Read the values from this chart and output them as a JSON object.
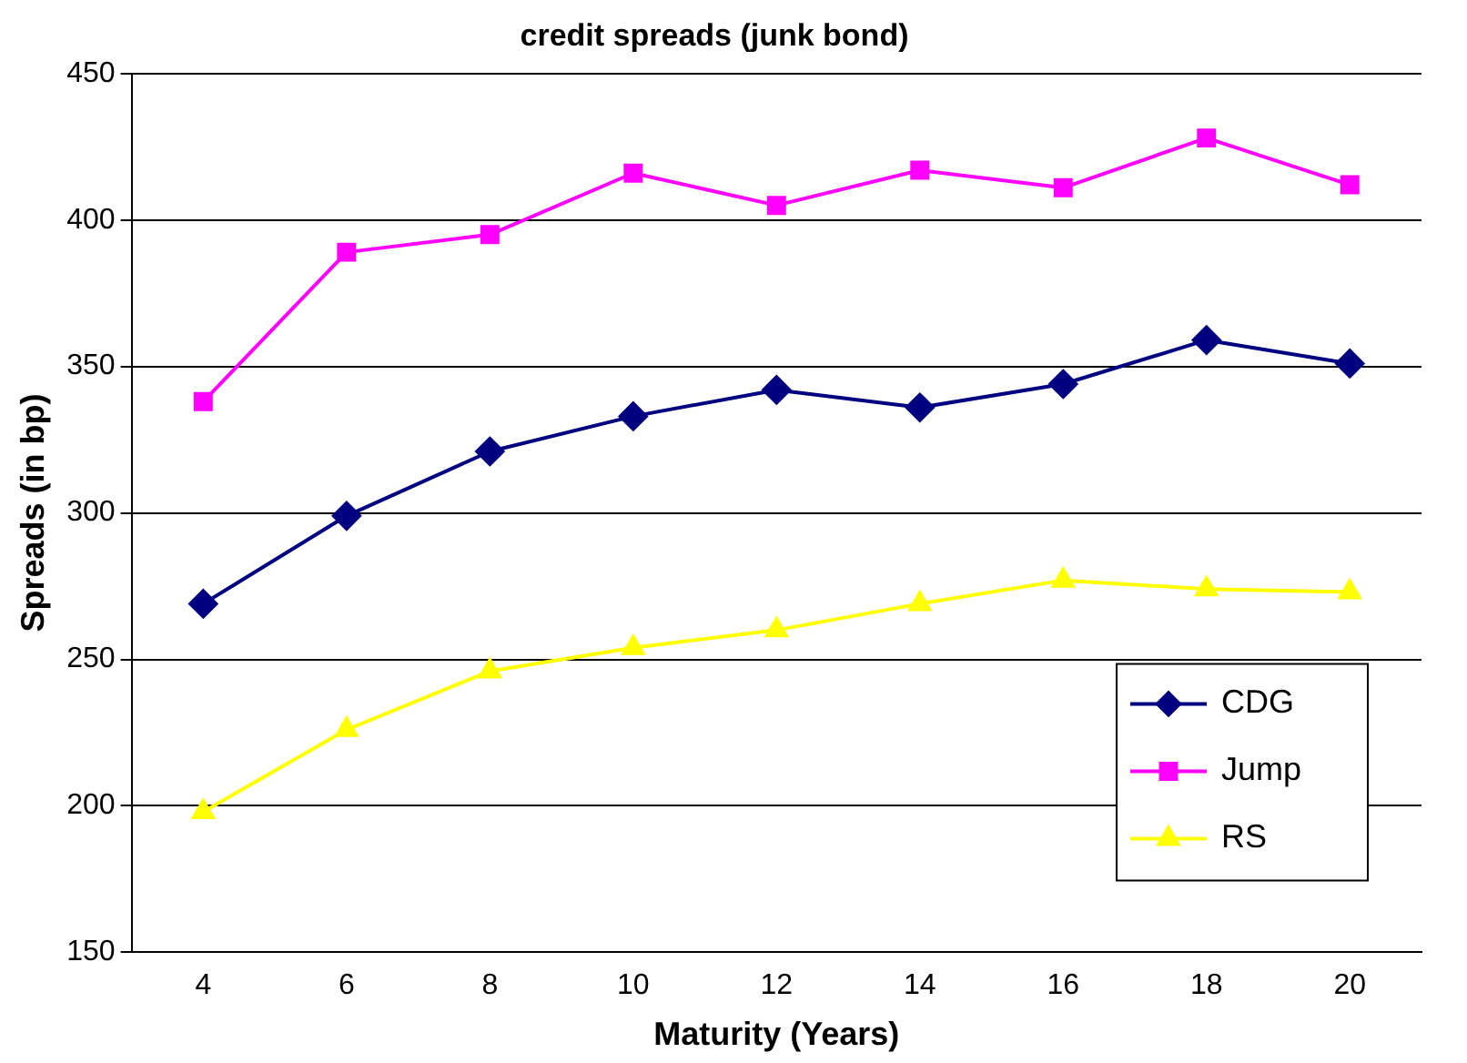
{
  "chart_data": {
    "type": "line",
    "title": "credit spreads (junk bond)",
    "xlabel": "Maturity (Years)",
    "ylabel": "Spreads (in bp)",
    "categories": [
      "4",
      "6",
      "8",
      "10",
      "12",
      "14",
      "16",
      "18",
      "20"
    ],
    "series": [
      {
        "name": "CDG",
        "color": "#000080",
        "marker": "diamond",
        "values": [
          269,
          299,
          321,
          333,
          342,
          336,
          344,
          359,
          351
        ]
      },
      {
        "name": "Jump",
        "color": "#ff00ff",
        "marker": "square",
        "values": [
          338,
          389,
          395,
          416,
          405,
          417,
          411,
          428,
          412
        ]
      },
      {
        "name": "RS",
        "color": "#ffff00",
        "marker": "triangle",
        "values": [
          198,
          226,
          246,
          254,
          260,
          269,
          277,
          274,
          273
        ]
      }
    ],
    "ylim": [
      150,
      450
    ],
    "yticks": [
      150,
      200,
      250,
      300,
      350,
      400,
      450
    ],
    "grid": "y",
    "legend": "bottom right"
  }
}
